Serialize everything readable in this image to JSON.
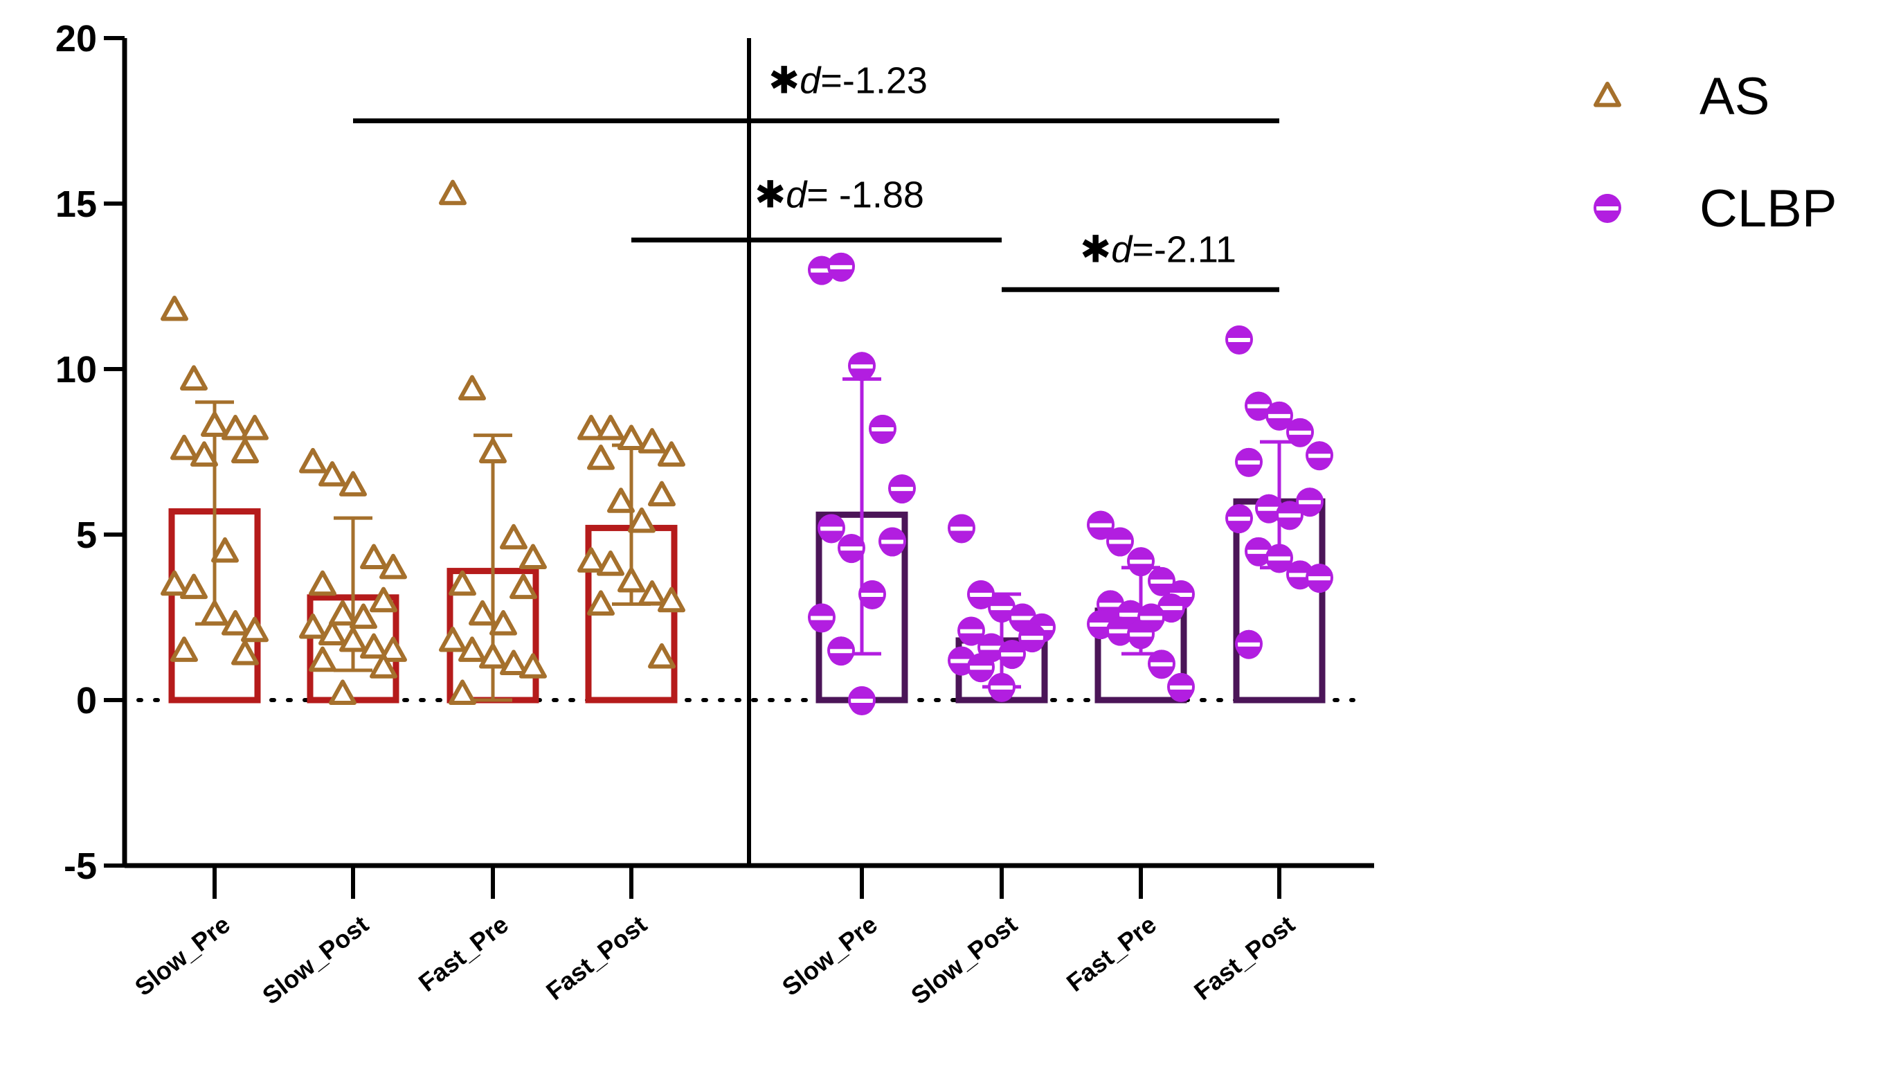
{
  "chart_data": {
    "type": "bar",
    "title": "",
    "xlabel": "",
    "ylabel": "",
    "ylim": [
      -5,
      20
    ],
    "yticks": [
      -5,
      0,
      5,
      10,
      15,
      20
    ],
    "ytick_labels": [
      "-5",
      "0",
      "5",
      "10",
      "15",
      "20"
    ],
    "reference_line": 0,
    "categories": [
      "Slow_Pre",
      "Slow_Post",
      "Fast_Pre",
      "Fast_Post",
      "Slow_Pre",
      "Slow_Post",
      "Fast_Pre",
      "Fast_Post"
    ],
    "series": [
      {
        "name": "AS",
        "marker": "triangle",
        "marker_color": "#A5702C",
        "bar_color": "#B51B1B",
        "category_indices": [
          0,
          1,
          2,
          3
        ],
        "means": [
          5.7,
          3.1,
          3.9,
          5.2
        ],
        "error_low": [
          2.3,
          0.9,
          0.0,
          2.9
        ],
        "error_high": [
          9.0,
          5.5,
          8.0,
          7.7
        ],
        "points": [
          [
            11.8,
            9.7,
            8.3,
            8.2,
            8.2,
            7.6,
            7.5,
            7.4,
            4.5,
            3.5,
            3.4,
            2.6,
            2.3,
            2.1,
            1.5,
            1.4
          ],
          [
            7.2,
            6.8,
            6.5,
            4.3,
            4.0,
            3.5,
            3.0,
            2.6,
            2.5,
            2.2,
            2.0,
            1.8,
            1.6,
            1.5,
            1.2,
            1.0,
            0.2
          ],
          [
            15.3,
            9.4,
            7.5,
            4.9,
            4.3,
            3.5,
            3.4,
            2.6,
            2.3,
            1.8,
            1.5,
            1.3,
            1.1,
            1.0,
            0.2
          ],
          [
            8.2,
            8.2,
            7.9,
            7.8,
            7.4,
            7.3,
            6.2,
            6.0,
            5.4,
            4.2,
            4.1,
            3.6,
            3.2,
            3.0,
            2.9,
            1.3
          ]
        ]
      },
      {
        "name": "CLBP",
        "marker": "half-filled circle",
        "marker_color": "#B21EE0",
        "bar_color": "#4B1558",
        "category_indices": [
          4,
          5,
          6,
          7
        ],
        "means": [
          5.6,
          1.8,
          2.7,
          6.0
        ],
        "error_low": [
          1.4,
          0.4,
          1.4,
          4.0
        ],
        "error_high": [
          9.7,
          3.2,
          4.0,
          7.8
        ],
        "points": [
          [
            13.0,
            13.1,
            10.1,
            8.2,
            6.4,
            5.2,
            4.8,
            4.6,
            3.2,
            2.5,
            1.5,
            0.0
          ],
          [
            5.2,
            3.2,
            2.8,
            2.5,
            2.2,
            2.1,
            1.9,
            1.6,
            1.4,
            1.2,
            1.0,
            0.4
          ],
          [
            5.3,
            4.8,
            4.2,
            3.6,
            3.2,
            2.9,
            2.8,
            2.6,
            2.5,
            2.3,
            2.1,
            2.0,
            1.1,
            0.4
          ],
          [
            10.9,
            8.9,
            8.6,
            8.1,
            7.4,
            7.2,
            6.0,
            5.8,
            5.6,
            5.5,
            4.5,
            4.3,
            3.8,
            3.7,
            1.7
          ]
        ]
      }
    ],
    "legend": {
      "position": "top-right",
      "entries": [
        {
          "label": "AS",
          "marker": "triangle",
          "color": "#A5702C"
        },
        {
          "label": "CLBP",
          "marker": "half-filled circle",
          "color": "#B21EE0"
        }
      ]
    },
    "annotations": [
      {
        "star": "✱",
        "d": "d",
        "text": "=-1.23",
        "from": 1,
        "to": 7,
        "y": 17.5
      },
      {
        "star": "✱",
        "d": "d",
        "text": "= -1.88",
        "from": 3,
        "to": 5,
        "y": 13.9
      },
      {
        "star": "✱",
        "d": "d",
        "text": "=-2.11",
        "from": 5,
        "to": 7,
        "y": 12.4
      }
    ],
    "group_divider": "between Fast_Post and Slow_Pre"
  }
}
